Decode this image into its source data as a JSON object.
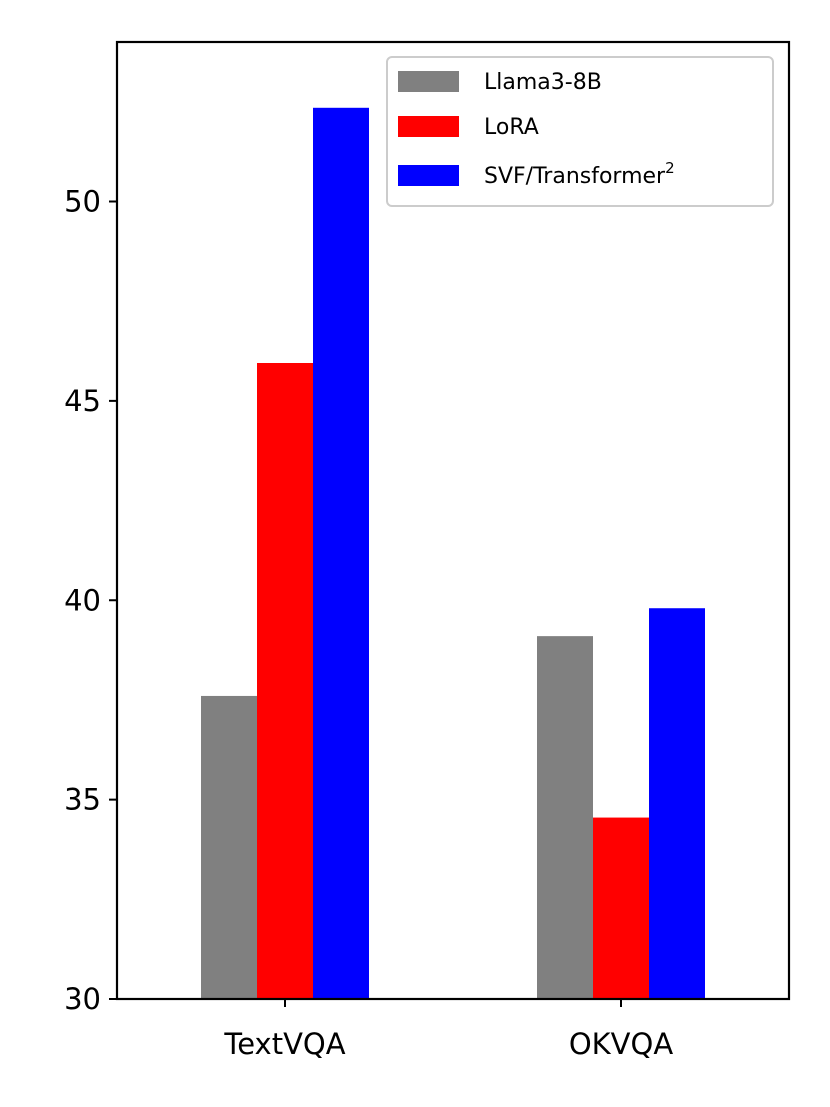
{
  "chart_data": {
    "type": "bar",
    "title": "",
    "xlabel": "",
    "ylabel": "",
    "categories": [
      "TextVQA",
      "OKVQA"
    ],
    "series": [
      {
        "name": "Llama3-8B",
        "color": "#808080",
        "values": [
          37.6,
          39.1
        ]
      },
      {
        "name": "LoRA",
        "color": "#ff0000",
        "values": [
          45.95,
          34.55
        ]
      },
      {
        "name": "SVF/Transformer",
        "name_superscript": "2",
        "color": "#0000ff",
        "values": [
          52.35,
          39.8
        ]
      }
    ],
    "ylim": [
      30,
      54
    ],
    "yticks": [
      "30",
      "35",
      "40",
      "45",
      "50"
    ],
    "grid": false,
    "legend_position": "top-right"
  }
}
